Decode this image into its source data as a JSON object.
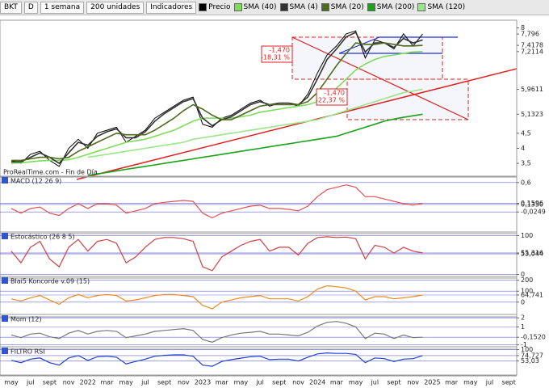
{
  "toolbar": {
    "symbol": "BKT",
    "d": "D",
    "period": "1 semana",
    "units": "200 unidades",
    "indicators": "Indicadores"
  },
  "x_axis": {
    "labels": [
      "may",
      "jul",
      "sept",
      "nov",
      "2022",
      "mar",
      "may",
      "jul",
      "sept",
      "nov",
      "2023",
      "mar",
      "may",
      "jul",
      "sept",
      "nov",
      "2024",
      "mar",
      "may",
      "jul",
      "sept",
      "nov",
      "2025",
      "mar",
      "may",
      "jul",
      "sept"
    ]
  },
  "chart_data": [
    {
      "type": "line",
      "ylim": [
        3.1,
        8.2
      ],
      "yticks": [
        8,
        {
          "value": 7.796,
          "label": "7,796"
        },
        {
          "value": 7.4178,
          "label": "7,4178"
        },
        {
          "value": 7.2114,
          "label": "7,2114"
        },
        {
          "value": 5.9611,
          "label": "5,9611"
        },
        {
          "value": 5.1323,
          "label": "5,1323"
        },
        {
          "value": 4.5,
          "label": "4,5"
        },
        4,
        {
          "value": 3.5,
          "label": "3,5"
        }
      ],
      "watermark": "ProRealTime.com - Fin de Día",
      "annotations": [
        {
          "lines": [
            "-1,470",
            "-18,31 %"
          ]
        },
        {
          "lines": [
            "-1,470",
            "-22,37 %"
          ]
        }
      ],
      "series": [
        {
          "name": "Precio",
          "color": "#000000",
          "values": [
            3.6,
            3.5,
            3.8,
            3.9,
            3.6,
            3.4,
            4.0,
            4.3,
            4.0,
            4.5,
            4.6,
            4.7,
            4.2,
            4.4,
            4.6,
            5.0,
            5.2,
            5.4,
            5.6,
            5.7,
            4.8,
            4.7,
            5.0,
            5.1,
            5.3,
            5.5,
            5.6,
            5.4,
            5.5,
            5.5,
            5.4,
            5.8,
            6.5,
            7.1,
            7.4,
            7.8,
            7.9,
            7.0,
            7.6,
            7.5,
            7.3,
            7.8,
            7.4,
            7.796
          ]
        },
        {
          "name": "SMA (40)",
          "color": "#7ddc5a",
          "values": [
            3.5,
            3.52,
            3.55,
            3.58,
            3.6,
            3.6,
            3.62,
            3.7,
            3.8,
            3.9,
            4.0,
            4.1,
            4.2,
            4.25,
            4.3,
            4.4,
            4.5,
            4.6,
            4.75,
            4.9,
            5.0,
            5.0,
            5.0,
            5.0,
            5.05,
            5.1,
            5.2,
            5.25,
            5.3,
            5.35,
            5.4,
            5.45,
            5.55,
            5.75,
            6.0,
            6.3,
            6.6,
            6.8,
            6.95,
            7.05,
            7.1,
            7.15,
            7.2,
            7.2114
          ]
        },
        {
          "name": "SMA (4)",
          "color": "#333333",
          "values": [
            3.55,
            3.55,
            3.7,
            3.85,
            3.7,
            3.5,
            3.85,
            4.2,
            4.1,
            4.4,
            4.55,
            4.65,
            4.35,
            4.35,
            4.55,
            4.9,
            5.15,
            5.35,
            5.55,
            5.65,
            5.0,
            4.75,
            4.95,
            5.05,
            5.25,
            5.45,
            5.55,
            5.45,
            5.5,
            5.5,
            5.45,
            5.7,
            6.3,
            6.95,
            7.3,
            7.7,
            7.85,
            7.2,
            7.5,
            7.5,
            7.35,
            7.65,
            7.5,
            7.6
          ]
        },
        {
          "name": "SMA (20)",
          "color": "#4f6b1e",
          "values": [
            3.6,
            3.6,
            3.65,
            3.7,
            3.7,
            3.65,
            3.7,
            3.9,
            4.05,
            4.2,
            4.35,
            4.5,
            4.45,
            4.45,
            4.45,
            4.6,
            4.8,
            5.0,
            5.25,
            5.45,
            5.3,
            5.1,
            4.95,
            4.95,
            5.1,
            5.25,
            5.4,
            5.45,
            5.45,
            5.45,
            5.45,
            5.55,
            5.85,
            6.3,
            6.75,
            7.15,
            7.5,
            7.45,
            7.45,
            7.5,
            7.45,
            7.4,
            7.4,
            7.4178
          ]
        },
        {
          "name": "SMA (200)",
          "color": "#1aa31a",
          "values": [
            null,
            null,
            null,
            null,
            null,
            null,
            null,
            null,
            3.1,
            3.15,
            3.2,
            3.25,
            3.3,
            3.35,
            3.4,
            3.45,
            3.5,
            3.55,
            3.6,
            3.65,
            3.7,
            3.75,
            3.8,
            3.85,
            3.9,
            3.95,
            4.0,
            4.05,
            4.1,
            4.15,
            4.2,
            4.25,
            4.3,
            4.35,
            4.4,
            4.5,
            4.6,
            4.7,
            4.8,
            4.9,
            4.97,
            5.03,
            5.08,
            5.1323
          ]
        },
        {
          "name": "SMA (120)",
          "color": "#9be68a",
          "values": [
            null,
            null,
            null,
            null,
            null,
            null,
            null,
            null,
            3.7,
            3.75,
            3.8,
            3.85,
            3.9,
            3.95,
            4.0,
            4.05,
            4.1,
            4.15,
            4.2,
            4.3,
            4.35,
            4.4,
            4.45,
            4.5,
            4.55,
            4.6,
            4.65,
            4.7,
            4.75,
            4.8,
            4.85,
            4.9,
            4.95,
            5.05,
            5.15,
            5.25,
            5.35,
            5.45,
            5.55,
            5.65,
            5.75,
            5.85,
            5.9,
            5.9611
          ]
        }
      ]
    },
    {
      "type": "line",
      "title": "MACD (12 26 9)",
      "ylim": [
        -0.45,
        0.7
      ],
      "yticks": [
        {
          "value": 0.6,
          "label": "0,6"
        },
        {
          "value": 0.1596,
          "label": "0,1596"
        },
        {
          "value": 0.135,
          "label": "0,1350"
        },
        {
          "value": -0.0249,
          "label": "-0,0249"
        }
      ],
      "color": "#e05050",
      "values": [
        0.05,
        -0.05,
        0.05,
        0.08,
        -0.05,
        -0.1,
        0.05,
        0.15,
        0.05,
        0.15,
        0.15,
        0.12,
        -0.05,
        0.0,
        0.05,
        0.15,
        0.18,
        0.2,
        0.22,
        0.2,
        -0.05,
        -0.15,
        -0.05,
        0.0,
        0.05,
        0.1,
        0.12,
        0.05,
        0.05,
        0.03,
        0.0,
        0.1,
        0.3,
        0.45,
        0.5,
        0.55,
        0.5,
        0.3,
        0.3,
        0.25,
        0.2,
        0.15,
        0.12,
        0.1596
      ]
    },
    {
      "type": "line",
      "title": "Estocástico (26 8 5)",
      "ylim": [
        -5,
        105
      ],
      "yticks": [
        100,
        {
          "value": 55.316,
          "label": "55,316"
        },
        {
          "value": 53.044,
          "label": "53,044"
        },
        0
      ],
      "color": "#d04040",
      "values": [
        60,
        30,
        70,
        85,
        40,
        20,
        70,
        90,
        60,
        85,
        90,
        80,
        30,
        45,
        70,
        90,
        95,
        95,
        92,
        85,
        20,
        10,
        45,
        60,
        75,
        85,
        90,
        60,
        70,
        70,
        50,
        80,
        95,
        97,
        95,
        96,
        92,
        40,
        75,
        70,
        55,
        70,
        60,
        55.316
      ]
    },
    {
      "type": "line",
      "title": "Blai5 Koncorde v.09 (15)",
      "ylim": [
        -120,
        220
      ],
      "yticks": [
        200,
        100,
        0,
        {
          "value": 64.741,
          "label": "64,741"
        }
      ],
      "color": "#f08a1c",
      "values": [
        30,
        10,
        40,
        60,
        20,
        -20,
        40,
        70,
        40,
        60,
        70,
        60,
        10,
        20,
        40,
        60,
        70,
        70,
        60,
        50,
        -30,
        -60,
        0,
        20,
        40,
        50,
        60,
        30,
        30,
        30,
        10,
        50,
        120,
        150,
        140,
        130,
        100,
        20,
        50,
        50,
        30,
        40,
        50,
        64.741
      ]
    },
    {
      "type": "line",
      "title": "Mom (12)",
      "ylim": [
        -1.3,
        2.2
      ],
      "yticks": [
        2,
        1,
        {
          "value": -0.152,
          "label": "-0,1520"
        },
        -1
      ],
      "color": "#777777",
      "values": [
        0.1,
        -0.2,
        0.2,
        0.3,
        -0.1,
        -0.3,
        0.3,
        0.6,
        0.2,
        0.5,
        0.6,
        0.5,
        -0.2,
        0.0,
        0.2,
        0.5,
        0.6,
        0.7,
        0.8,
        0.6,
        -0.4,
        -0.7,
        -0.2,
        0.1,
        0.3,
        0.4,
        0.5,
        0.2,
        0.2,
        0.1,
        0.0,
        0.4,
        1.1,
        1.5,
        1.6,
        1.4,
        1.0,
        -0.3,
        0.3,
        0.2,
        -0.3,
        0.1,
        -0.2,
        -0.152
      ]
    },
    {
      "type": "line",
      "title": "FILTRO RSI",
      "ylim": [
        0,
        105
      ],
      "yticks": [
        100,
        {
          "value": 74.727,
          "label": "74,727"
        },
        {
          "value": 53.03,
          "label": "53,03"
        }
      ],
      "color": "#2040d0",
      "values": [
        55,
        45,
        60,
        65,
        45,
        35,
        65,
        75,
        55,
        70,
        72,
        68,
        40,
        50,
        60,
        72,
        76,
        78,
        78,
        72,
        35,
        30,
        50,
        58,
        64,
        70,
        72,
        58,
        60,
        60,
        52,
        68,
        82,
        86,
        84,
        84,
        80,
        45,
        65,
        62,
        50,
        60,
        62,
        74.727
      ]
    }
  ]
}
